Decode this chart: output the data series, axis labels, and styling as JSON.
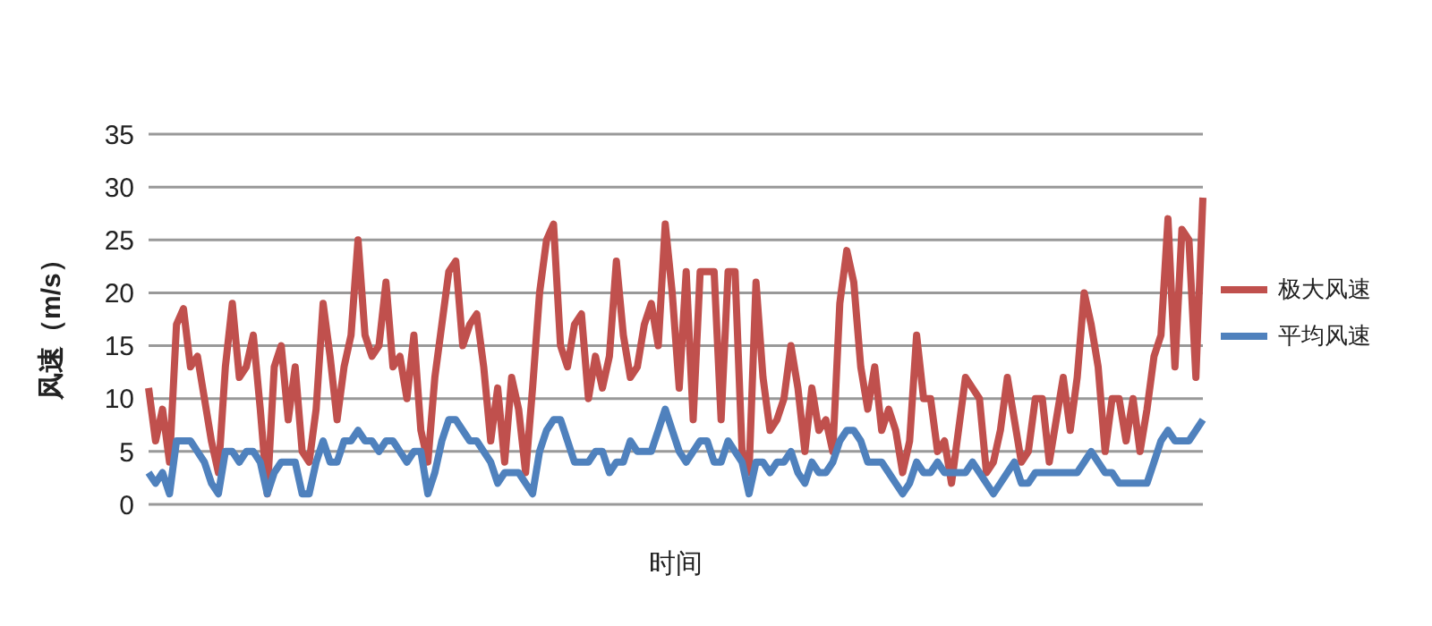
{
  "chart_data": {
    "type": "line",
    "xlabel": "时间",
    "ylabel": "风速（m/s）",
    "ylim": [
      0,
      35
    ],
    "yticks": [
      0,
      5,
      10,
      15,
      20,
      25,
      30,
      35
    ],
    "grid": "y",
    "legend": "right",
    "marker": "none",
    "line_style": "solid",
    "categories": [
      null,
      null,
      null,
      null,
      null,
      null,
      null,
      null,
      null,
      null,
      null,
      null,
      null,
      null,
      null,
      null,
      null,
      null,
      null,
      null,
      null,
      null,
      null,
      null,
      null,
      null,
      null,
      null,
      null,
      null,
      null,
      null,
      null,
      null,
      null,
      null,
      null,
      null,
      null,
      null,
      null,
      null,
      null,
      null,
      null,
      null,
      null,
      null,
      null,
      null,
      null,
      null,
      null,
      null,
      null,
      null,
      null,
      null,
      null,
      null,
      null,
      null,
      null,
      null,
      null,
      null,
      null,
      null,
      null,
      null,
      null,
      null,
      null,
      null,
      null,
      null,
      null,
      null,
      null,
      null,
      null,
      null,
      null,
      null,
      null,
      null,
      null,
      null,
      null,
      null,
      null,
      null,
      null,
      null,
      null,
      null,
      null,
      null,
      null,
      null,
      null,
      null,
      null,
      null,
      null,
      null,
      null,
      null,
      null,
      null,
      null,
      null,
      null,
      null,
      null,
      null,
      null,
      null,
      null,
      null,
      null,
      null,
      null,
      null,
      null,
      null,
      null,
      null,
      null,
      null,
      null,
      null,
      null,
      null,
      null,
      null,
      null,
      null,
      null,
      null,
      null,
      null,
      null,
      null,
      null,
      null,
      null,
      null,
      null,
      null,
      null,
      null
    ],
    "series": [
      {
        "name": "极大风速",
        "color": "#c0504d",
        "values": [
          11,
          6,
          9,
          4,
          17,
          18.5,
          13,
          14,
          10,
          6,
          3,
          13,
          19,
          12,
          13,
          16,
          9,
          1,
          13,
          15,
          8,
          13,
          5,
          4,
          9,
          19,
          14,
          8,
          13,
          16,
          25,
          16,
          14,
          15,
          21,
          13,
          14,
          10,
          16,
          7,
          4,
          12,
          17,
          22,
          23,
          15,
          17,
          18,
          13,
          6,
          11,
          4,
          12,
          9,
          3,
          11,
          20,
          25,
          26.5,
          15,
          13,
          17,
          18,
          10,
          14,
          11,
          14,
          23,
          16,
          12,
          13,
          17,
          19,
          15,
          26.5,
          20,
          11,
          22,
          8,
          22,
          22,
          22,
          8,
          22,
          22,
          5,
          3,
          21,
          12,
          7,
          8,
          10,
          15,
          11,
          5,
          11,
          7,
          8,
          5,
          19,
          24,
          21,
          13,
          9,
          13,
          7,
          9,
          7,
          3,
          6,
          16,
          10,
          10,
          5,
          6,
          2,
          7,
          12,
          11,
          10,
          3,
          4,
          7,
          12,
          8,
          4,
          5,
          10,
          10,
          4,
          8,
          12,
          7,
          12,
          20,
          17,
          13,
          5,
          10,
          10,
          6,
          10,
          5,
          9,
          14,
          16,
          27,
          13,
          26,
          25,
          12,
          29
        ]
      },
      {
        "name": "平均风速",
        "color": "#4f81bd",
        "values": [
          3,
          2,
          3,
          1,
          6,
          6,
          6,
          5,
          4,
          2,
          1,
          5,
          5,
          4,
          5,
          5,
          4,
          1,
          3,
          4,
          4,
          4,
          1,
          1,
          4,
          6,
          4,
          4,
          6,
          6,
          7,
          6,
          6,
          5,
          6,
          6,
          5,
          4,
          5,
          5,
          1,
          3,
          6,
          8,
          8,
          7,
          6,
          6,
          5,
          4,
          2,
          3,
          3,
          3,
          2,
          1,
          5,
          7,
          8,
          8,
          6,
          4,
          4,
          4,
          5,
          5,
          3,
          4,
          4,
          6,
          5,
          5,
          5,
          7,
          9,
          7,
          5,
          4,
          5,
          6,
          6,
          4,
          4,
          6,
          5,
          4,
          1,
          4,
          4,
          3,
          4,
          4,
          5,
          3,
          2,
          4,
          3,
          3,
          4,
          6,
          7,
          7,
          6,
          4,
          4,
          4,
          3,
          2,
          1,
          2,
          4,
          3,
          3,
          4,
          3,
          3,
          3,
          3,
          4,
          3,
          2,
          1,
          2,
          3,
          4,
          2,
          2,
          3,
          3,
          3,
          3,
          3,
          3,
          3,
          4,
          5,
          4,
          3,
          3,
          2,
          2,
          2,
          2,
          2,
          4,
          6,
          7,
          6,
          6,
          6,
          7,
          8
        ]
      }
    ]
  }
}
